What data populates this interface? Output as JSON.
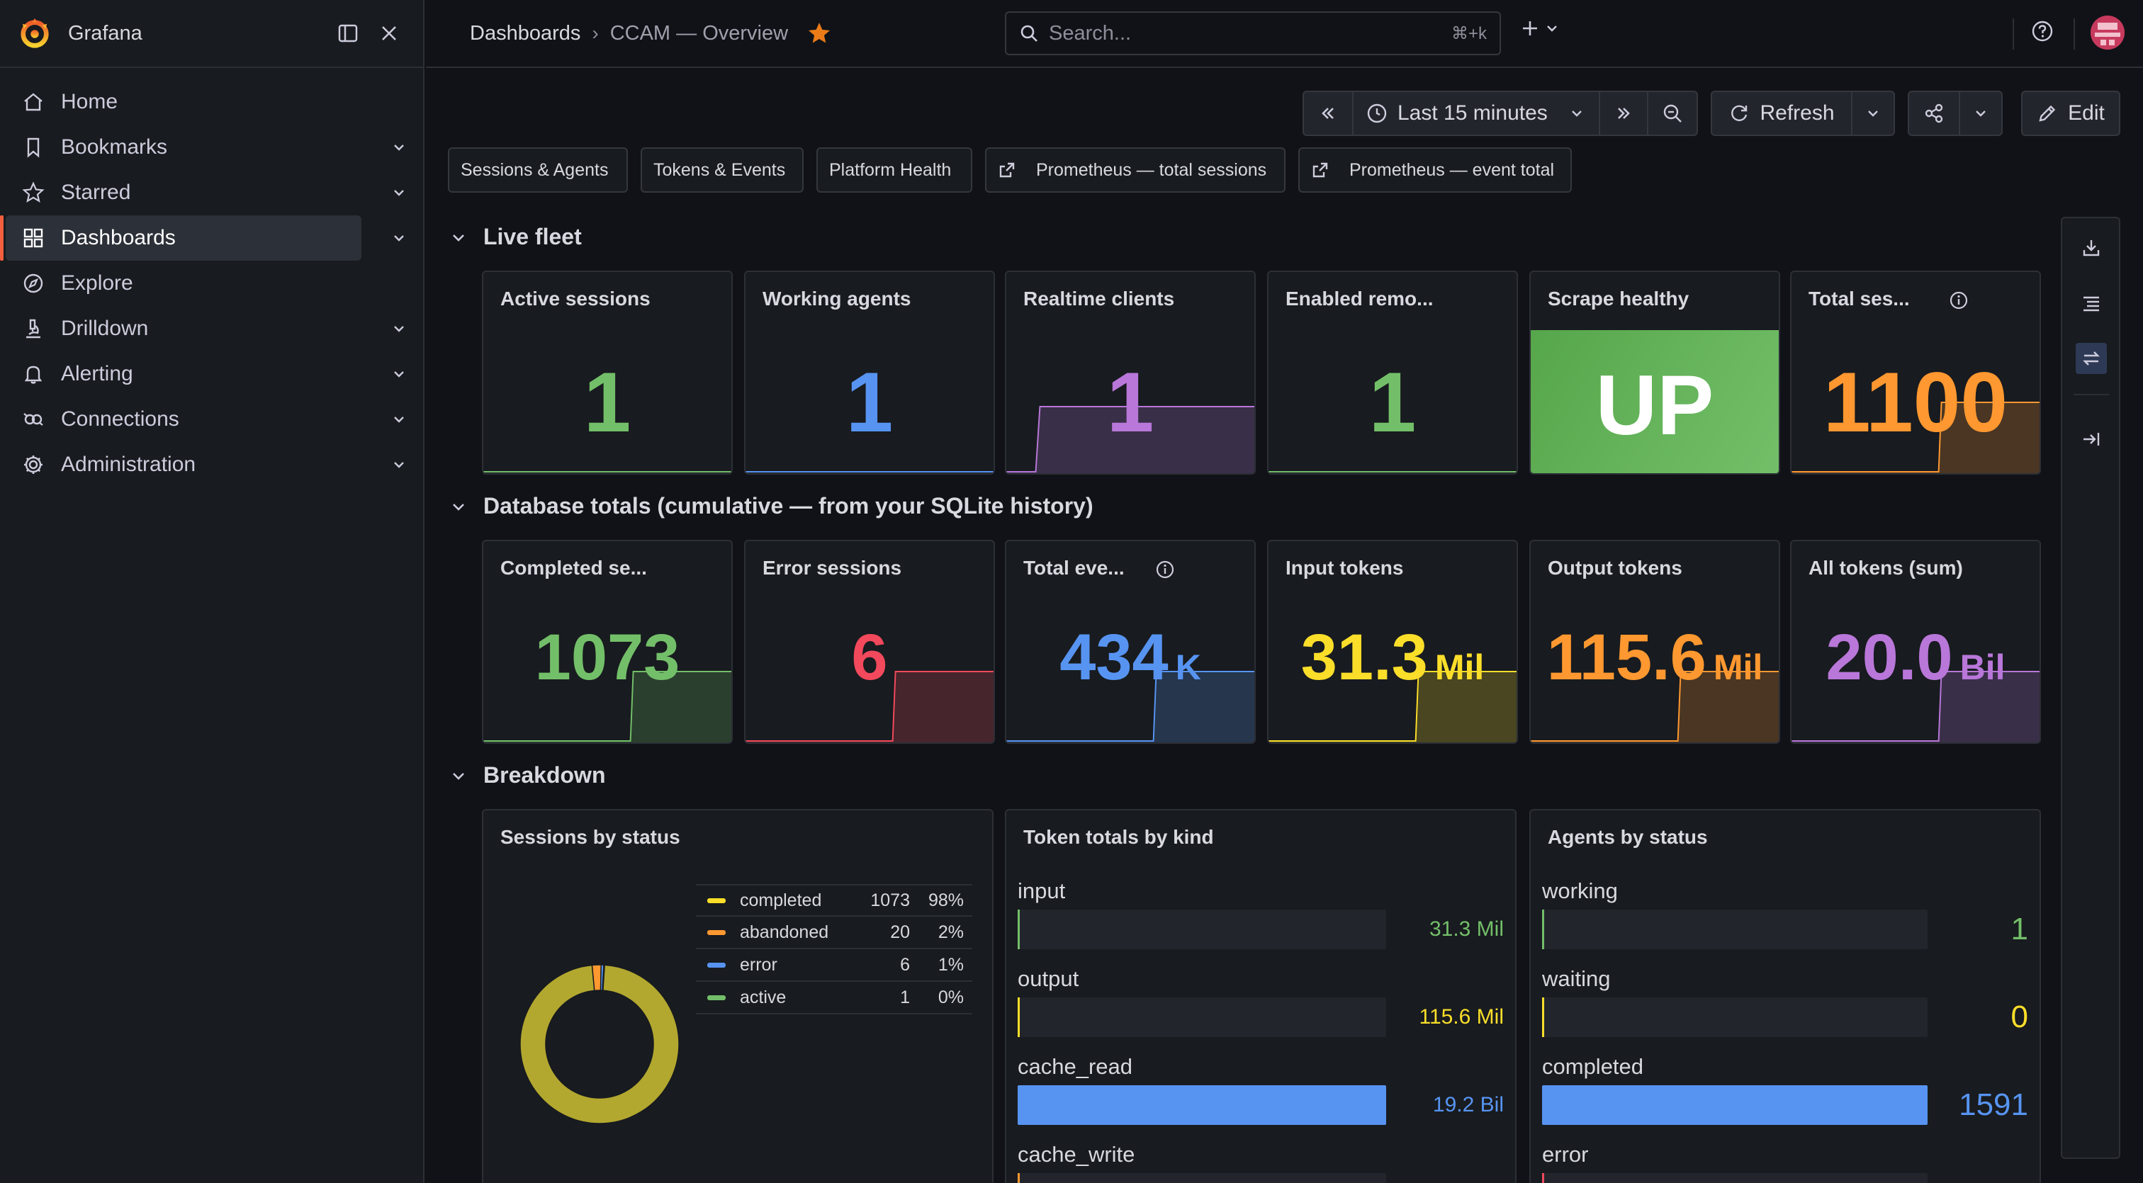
{
  "app": {
    "brand": "Grafana"
  },
  "sidebar": {
    "items": [
      {
        "label": "Home",
        "icon": "home-icon",
        "chevron": false
      },
      {
        "label": "Bookmarks",
        "icon": "bookmark-icon",
        "chevron": true
      },
      {
        "label": "Starred",
        "icon": "star-icon",
        "chevron": true
      },
      {
        "label": "Dashboards",
        "icon": "apps-icon",
        "chevron": true,
        "active": true
      },
      {
        "label": "Explore",
        "icon": "compass-icon",
        "chevron": false
      },
      {
        "label": "Drilldown",
        "icon": "microscope-icon",
        "chevron": true
      },
      {
        "label": "Alerting",
        "icon": "bell-icon",
        "chevron": true
      },
      {
        "label": "Connections",
        "icon": "connections-icon",
        "chevron": true
      },
      {
        "label": "Administration",
        "icon": "cog-icon",
        "chevron": true
      }
    ]
  },
  "topbar": {
    "crumb_root": "Dashboards",
    "crumb_sep": "›",
    "crumb_current": "CCAM — Overview",
    "search_placeholder": "Search...",
    "search_shortcut": "⌘+k"
  },
  "toolbar": {
    "time_range": "Last 15 minutes",
    "refresh_label": "Refresh",
    "edit_label": "Edit"
  },
  "links": [
    {
      "label": "Sessions & Agents",
      "external": false
    },
    {
      "label": "Tokens & Events",
      "external": false
    },
    {
      "label": "Platform Health",
      "external": false
    },
    {
      "label": "Prometheus — total sessions",
      "external": true
    },
    {
      "label": "Prometheus — event total",
      "external": true
    }
  ],
  "rows": {
    "live": "Live fleet",
    "db": "Database totals (cumulative — from your SQLite history)",
    "breakdown": "Breakdown"
  },
  "live_panels": [
    {
      "title": "Active sessions",
      "value": "1",
      "unit": "",
      "color": "#73bf69",
      "spark": false
    },
    {
      "title": "Working agents",
      "value": "1",
      "unit": "",
      "color": "#5794f2",
      "spark": false
    },
    {
      "title": "Realtime clients",
      "value": "1",
      "unit": "",
      "color": "#b877d9",
      "spark": true
    },
    {
      "title": "Enabled remo...",
      "value": "1",
      "unit": "",
      "color": "#73bf69",
      "spark": false
    },
    {
      "title": "Scrape healthy",
      "value": "UP",
      "unit": "",
      "color": "#ffffff",
      "spark": false
    },
    {
      "title": "Total ses...",
      "value": "1100",
      "unit": "",
      "color": "#ff9830",
      "spark": true,
      "info": true
    }
  ],
  "db_panels": [
    {
      "title": "Completed se...",
      "value": "1073",
      "unit": "",
      "color": "#73bf69"
    },
    {
      "title": "Error sessions",
      "value": "6",
      "unit": "",
      "color": "#f2495c"
    },
    {
      "title": "Total eve...",
      "value": "434",
      "unit": "K",
      "color": "#5794f2",
      "info": true
    },
    {
      "title": "Input tokens",
      "value": "31.3",
      "unit": "Mil",
      "color": "#fade2a"
    },
    {
      "title": "Output tokens",
      "value": "115.6",
      "unit": "Mil",
      "color": "#ff9830"
    },
    {
      "title": "All tokens (sum)",
      "value": "20.0",
      "unit": "Bil",
      "color": "#b877d9"
    }
  ],
  "sessions_by_status": {
    "title": "Sessions by status",
    "legend": [
      {
        "name": "completed",
        "value": "1073",
        "pct": "98%",
        "color": "#fade2a"
      },
      {
        "name": "abandoned",
        "value": "20",
        "pct": "2%",
        "color": "#ff9830"
      },
      {
        "name": "error",
        "value": "6",
        "pct": "1%",
        "color": "#5794f2"
      },
      {
        "name": "active",
        "value": "1",
        "pct": "0%",
        "color": "#73bf69"
      }
    ]
  },
  "chart_data": [
    {
      "type": "pie",
      "title": "Sessions by status",
      "categories": [
        "completed",
        "abandoned",
        "error",
        "active"
      ],
      "values": [
        1073,
        20,
        6,
        1
      ]
    },
    {
      "type": "bar",
      "title": "Token totals by kind",
      "categories": [
        "input",
        "output",
        "cache_read",
        "cache_write"
      ],
      "display": [
        "31.3 Mil",
        "115.6 Mil",
        "19.2 Bil",
        ""
      ],
      "values": [
        31300000,
        115600000,
        19200000000,
        null
      ],
      "fill_fraction": [
        0.0016,
        0.006,
        1.0,
        0.02
      ],
      "colors": [
        "#73bf69",
        "#fade2a",
        "#5794f2",
        "#ff9830"
      ]
    },
    {
      "type": "bar",
      "title": "Agents by status",
      "categories": [
        "working",
        "waiting",
        "completed",
        "error"
      ],
      "display": [
        "1",
        "0",
        "1591",
        ""
      ],
      "values": [
        1,
        0,
        1591,
        null
      ],
      "fill_fraction": [
        0.0006,
        0.0,
        1.0,
        0.0
      ],
      "colors": [
        "#73bf69",
        "#fade2a",
        "#5794f2",
        "#f2495c"
      ]
    }
  ]
}
